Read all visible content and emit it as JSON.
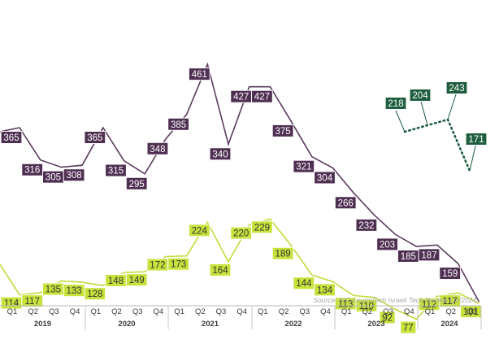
{
  "chart_data": {
    "type": "line",
    "source": "Source: IVC-LeumiTech Israeli Tech Review Q3/2024",
    "quarters": [
      "Q1",
      "Q2",
      "Q3",
      "Q4",
      "Q1",
      "Q2",
      "Q3",
      "Q4",
      "Q1",
      "Q2",
      "Q3",
      "Q4",
      "Q1",
      "Q2",
      "Q3",
      "Q4",
      "Q1",
      "Q2",
      "Q3",
      "Q4",
      "Q1",
      "Q2",
      "Q3"
    ],
    "years": [
      "2019",
      "2020",
      "2021",
      "2022",
      "2023",
      "2024"
    ],
    "series": [
      {
        "color": "#5b3a5e",
        "label_bg": "#4f2f52",
        "label_fg": "#ffffff",
        "style": "solid",
        "start_index": 0,
        "values": [
          365,
          316,
          305,
          308,
          365,
          315,
          295,
          348,
          385,
          461,
          340,
          427,
          427,
          375,
          321,
          304,
          266,
          232,
          203,
          185,
          187,
          159,
          101
        ]
      },
      {
        "color": "#bfdc3a",
        "label_bg": "#c6e33c",
        "label_fg": "#333333",
        "style": "solid",
        "start_index": 0,
        "values": [
          114,
          117,
          135,
          133,
          128,
          148,
          149,
          172,
          173,
          224,
          164,
          220,
          229,
          189,
          144,
          134,
          113,
          110,
          92,
          77,
          112,
          117,
          101
        ]
      },
      {
        "color": "#1e5e3e",
        "label_bg": "#1e5e3e",
        "label_fg": "#ffffff",
        "style": "dotted",
        "start_index": 19,
        "values": [
          218,
          204,
          243,
          171
        ]
      }
    ]
  }
}
